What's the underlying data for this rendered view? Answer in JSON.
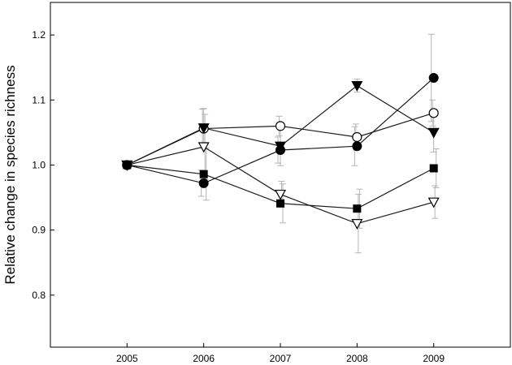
{
  "chart_data": {
    "type": "line",
    "title": "",
    "xlabel": "",
    "ylabel": "Relative change in species richness",
    "x": [
      2005,
      2006,
      2007,
      2008,
      2009
    ],
    "xlim": [
      2004,
      2010
    ],
    "ylim": [
      0.72,
      1.25
    ],
    "xticks": [
      2005,
      2006,
      2007,
      2008,
      2009
    ],
    "yticks": [
      0.8,
      0.9,
      1.0,
      1.1,
      1.2
    ],
    "xtick_labels": [
      "2005",
      "2006",
      "2007",
      "2008",
      "2009"
    ],
    "ytick_labels": [
      "0.8",
      "0.9",
      "1.0",
      "1.1",
      "1.2"
    ],
    "grid": false,
    "legend": "none",
    "series": [
      {
        "marker": "circle-filled",
        "values": [
          1.0,
          0.972,
          1.023,
          1.029,
          1.134
        ],
        "error": [
          0.0,
          0.02,
          0.02,
          0.03,
          0.067
        ]
      },
      {
        "marker": "circle-open",
        "values": [
          1.0,
          1.056,
          1.06,
          1.043,
          1.08
        ],
        "error": [
          0.0,
          0.03,
          0.015,
          0.02,
          0.02
        ]
      },
      {
        "marker": "triangle-down-filled",
        "values": [
          1.0,
          1.057,
          1.029,
          1.122,
          1.05
        ],
        "error": [
          0.0,
          0.03,
          0.03,
          0.01,
          0.03
        ]
      },
      {
        "marker": "triangle-down-open",
        "values": [
          1.0,
          1.028,
          0.955,
          0.91,
          0.943
        ],
        "error": [
          0.0,
          0.05,
          0.02,
          0.045,
          0.025
        ]
      },
      {
        "marker": "square-filled",
        "values": [
          1.0,
          0.986,
          0.941,
          0.933,
          0.995
        ],
        "error": [
          0.0,
          0.04,
          0.03,
          0.03,
          0.03
        ]
      }
    ]
  }
}
